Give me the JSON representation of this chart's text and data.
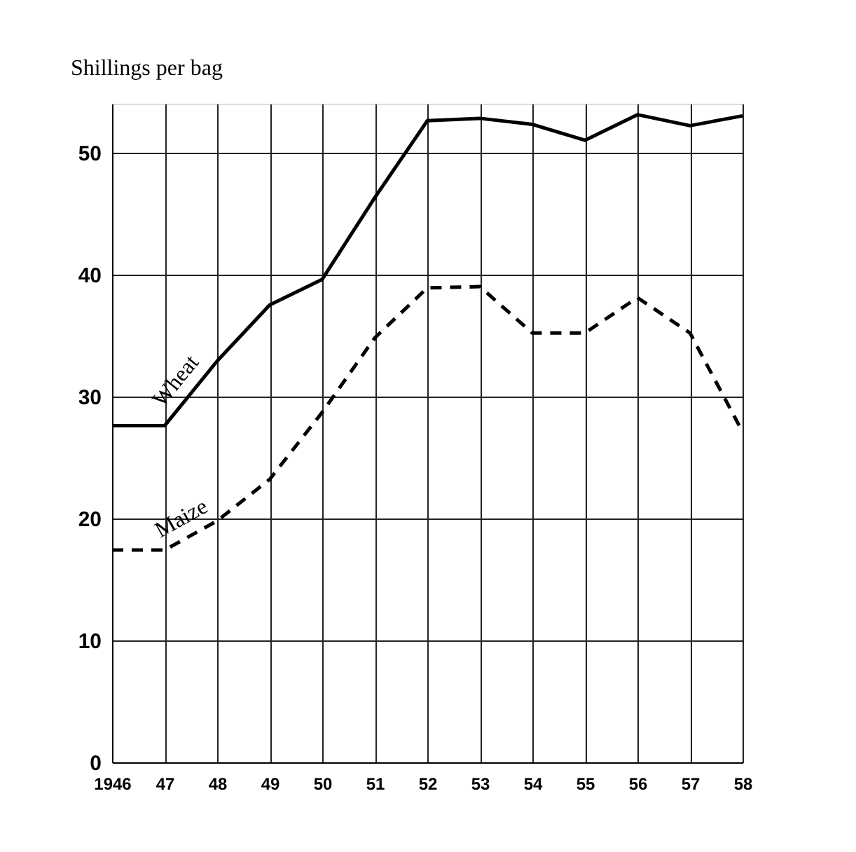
{
  "chart_data": {
    "type": "line",
    "ylabel": "Shillings per bag",
    "x": [
      1946,
      1947,
      1948,
      1949,
      1950,
      1951,
      1952,
      1953,
      1954,
      1955,
      1956,
      1957,
      1958
    ],
    "xlim": [
      1946,
      1958
    ],
    "xticks": [
      {
        "value": 1946,
        "label": "1946"
      },
      {
        "value": 1947,
        "label": "47"
      },
      {
        "value": 1948,
        "label": "48"
      },
      {
        "value": 1949,
        "label": "49"
      },
      {
        "value": 1950,
        "label": "50"
      },
      {
        "value": 1951,
        "label": "51"
      },
      {
        "value": 1952,
        "label": "52"
      },
      {
        "value": 1953,
        "label": "53"
      },
      {
        "value": 1954,
        "label": "54"
      },
      {
        "value": 1955,
        "label": "55"
      },
      {
        "value": 1956,
        "label": "56"
      },
      {
        "value": 1957,
        "label": "57"
      },
      {
        "value": 1958,
        "label": "58"
      }
    ],
    "ylim": [
      0,
      54
    ],
    "yticks": [
      0,
      10,
      20,
      30,
      40,
      50
    ],
    "grid": true,
    "marker": "none",
    "series": [
      {
        "name": "Wheat",
        "color": "#000000",
        "line_style": "solid",
        "values": [
          27.6,
          27.6,
          32.9,
          37.5,
          39.6,
          46.3,
          52.6,
          52.8,
          52.3,
          51.0,
          53.1,
          52.2,
          53.0
        ]
      },
      {
        "name": "Maize",
        "color": "#000000",
        "line_style": "dashed",
        "values": [
          17.4,
          17.4,
          19.8,
          23.2,
          28.7,
          34.8,
          38.9,
          39.0,
          35.2,
          35.2,
          38.1,
          35.2,
          27.1
        ]
      }
    ]
  }
}
